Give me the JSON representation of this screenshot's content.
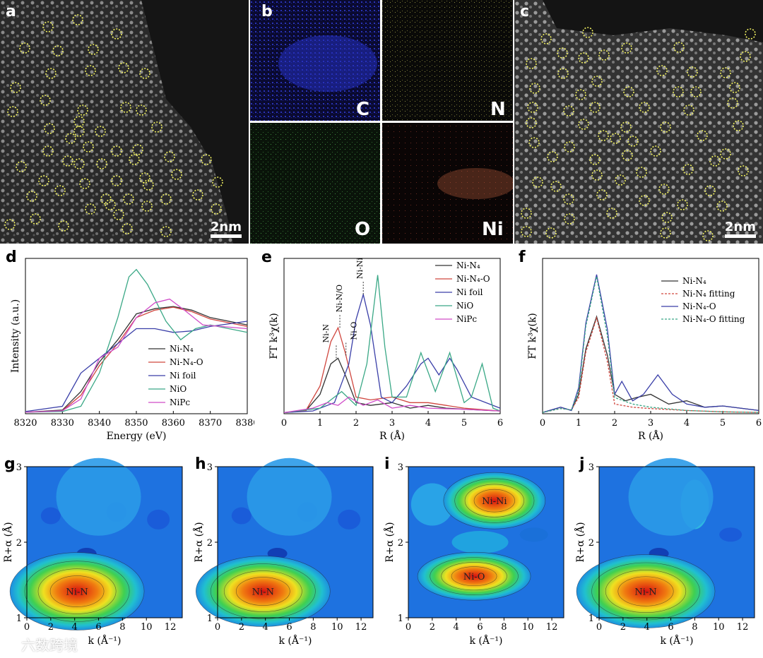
{
  "panels": {
    "a": {
      "label": "a",
      "scalebar": "2nm"
    },
    "b": {
      "label": "b",
      "maps": [
        "C",
        "N",
        "O",
        "Ni"
      ]
    },
    "c": {
      "label": "c",
      "scalebar": "2nm"
    },
    "d": {
      "label": "d",
      "xlabel": "Energy (eV)",
      "ylabel": "Intensity (a.u.)",
      "xticks": [
        "8320",
        "8330",
        "8340",
        "8350",
        "8360",
        "8370",
        "8380"
      ],
      "legend": [
        "Ni-N₄",
        "Ni-N₄-O",
        "Ni foil",
        "NiO",
        "NiPc"
      ]
    },
    "e": {
      "label": "e",
      "xlabel": "R (Å)",
      "ylabel": "FT k³χ(k)",
      "xticks": [
        "0",
        "1",
        "2",
        "3",
        "4",
        "5",
        "6"
      ],
      "legend": [
        "Ni-N₄",
        "Ni-N₄-O",
        "Ni foil",
        "NiO",
        "NiPc"
      ],
      "annotations": [
        "Ni-N",
        "Ni-N/O",
        "Ni-O",
        "Ni-Ni"
      ]
    },
    "f": {
      "label": "f",
      "xlabel": "R (Å)",
      "ylabel": "FT k³χ(k)",
      "xticks": [
        "0",
        "1",
        "2",
        "3",
        "4",
        "5",
        "6"
      ],
      "legend": [
        "Ni-N₄",
        "Ni-N₄ fitting",
        "Ni-N₄-O",
        "Ni-N₄-O fitting"
      ]
    },
    "g": {
      "label": "g",
      "peak": "Ni-N"
    },
    "h": {
      "label": "h",
      "peak": "Ni-N"
    },
    "i": {
      "label": "i",
      "peaks": [
        "Ni-Ni",
        "Ni-O"
      ]
    },
    "j": {
      "label": "j",
      "peak": "Ni-N"
    },
    "wt": {
      "xlabel": "k (Å⁻¹)",
      "ylabel": "R+α (Å)",
      "xticks": [
        "0",
        "2",
        "4",
        "6",
        "8",
        "10",
        "12"
      ],
      "yticks": [
        "1",
        "2",
        "3"
      ]
    }
  },
  "colors": {
    "ni_n4": "#333333",
    "ni_n4o": "#d0473f",
    "ni_foil": "#3a3fa8",
    "nio": "#3aa886",
    "nipc": "#d04cc8",
    "marker": "#f0f060"
  },
  "watermark": "六数跨境",
  "chart_data": [
    {
      "type": "line",
      "id": "d",
      "title": "",
      "xlabel": "Energy (eV)",
      "ylabel": "Intensity (a.u.)",
      "xlim": [
        8320,
        8380
      ],
      "series": [
        {
          "name": "Ni-N₄",
          "x": [
            8320,
            8330,
            8335,
            8340,
            8345,
            8350,
            8355,
            8360,
            8365,
            8370,
            8380
          ],
          "y": [
            0.02,
            0.05,
            0.3,
            0.7,
            1.0,
            1.35,
            1.42,
            1.45,
            1.4,
            1.3,
            1.2
          ]
        },
        {
          "name": "Ni-N₄-O",
          "x": [
            8320,
            8330,
            8335,
            8340,
            8345,
            8350,
            8355,
            8360,
            8365,
            8370,
            8380
          ],
          "y": [
            0.02,
            0.04,
            0.25,
            0.65,
            0.95,
            1.3,
            1.4,
            1.44,
            1.38,
            1.28,
            1.18
          ]
        },
        {
          "name": "Ni foil",
          "x": [
            8320,
            8330,
            8335,
            8340,
            8345,
            8350,
            8355,
            8360,
            8365,
            8370,
            8380
          ],
          "y": [
            0.03,
            0.1,
            0.55,
            0.75,
            0.95,
            1.15,
            1.15,
            1.1,
            1.12,
            1.18,
            1.25
          ]
        },
        {
          "name": "NiO",
          "x": [
            8320,
            8330,
            8335,
            8340,
            8345,
            8348,
            8350,
            8353,
            8358,
            8362,
            8366,
            8370,
            8380
          ],
          "y": [
            0.02,
            0.03,
            0.1,
            0.55,
            1.3,
            1.85,
            1.95,
            1.75,
            1.25,
            1.0,
            1.15,
            1.2,
            1.1
          ]
        },
        {
          "name": "NiPc",
          "x": [
            8320,
            8330,
            8335,
            8340,
            8345,
            8350,
            8355,
            8359,
            8363,
            8368,
            8380
          ],
          "y": [
            0.02,
            0.04,
            0.2,
            0.75,
            0.9,
            1.3,
            1.5,
            1.55,
            1.4,
            1.2,
            1.15
          ]
        }
      ]
    },
    {
      "type": "line",
      "id": "e",
      "title": "",
      "xlabel": "R (Å)",
      "ylabel": "FT k³χ(k)",
      "xlim": [
        0,
        6
      ],
      "series": [
        {
          "name": "Ni-N₄",
          "x": [
            0,
            0.6,
            1.0,
            1.3,
            1.5,
            1.7,
            2.0,
            2.4,
            3.0,
            3.5,
            4.0,
            4.5,
            5.0,
            6.0
          ],
          "y": [
            0.02,
            0.05,
            0.35,
            0.9,
            1.0,
            0.7,
            0.2,
            0.15,
            0.2,
            0.1,
            0.15,
            0.1,
            0.08,
            0.05
          ]
        },
        {
          "name": "Ni-N₄-O",
          "x": [
            0,
            0.6,
            1.0,
            1.3,
            1.5,
            1.7,
            2.0,
            2.4,
            3.0,
            3.5,
            4.0,
            4.5,
            5.0,
            6.0
          ],
          "y": [
            0.02,
            0.05,
            0.5,
            1.3,
            1.55,
            1.1,
            0.3,
            0.25,
            0.3,
            0.2,
            0.2,
            0.15,
            0.1,
            0.05
          ]
        },
        {
          "name": "Ni foil",
          "x": [
            0,
            0.8,
            1.4,
            1.8,
            2.0,
            2.2,
            2.4,
            2.7,
            3.0,
            3.4,
            3.8,
            4.0,
            4.3,
            4.6,
            4.8,
            5.2,
            6.0
          ],
          "y": [
            0.02,
            0.05,
            0.2,
            0.9,
            1.7,
            2.15,
            1.6,
            0.3,
            0.2,
            0.5,
            0.9,
            1.0,
            0.7,
            1.0,
            0.8,
            0.3,
            0.1
          ]
        },
        {
          "name": "NiO",
          "x": [
            0,
            1.0,
            1.6,
            2.0,
            2.3,
            2.6,
            2.8,
            3.0,
            3.4,
            3.8,
            4.2,
            4.6,
            5.0,
            5.2,
            5.5,
            5.8,
            6.0
          ],
          "y": [
            0.02,
            0.1,
            0.4,
            0.15,
            0.9,
            2.5,
            1.2,
            0.3,
            0.3,
            1.1,
            0.4,
            1.1,
            0.2,
            0.3,
            0.9,
            0.1,
            0.05
          ]
        },
        {
          "name": "NiPc",
          "x": [
            0,
            0.8,
            1.2,
            1.5,
            1.8,
            2.2,
            2.6,
            3.0,
            3.5,
            4.0,
            5.0,
            6.0
          ],
          "y": [
            0.02,
            0.1,
            0.2,
            0.15,
            0.3,
            0.15,
            0.25,
            0.1,
            0.15,
            0.1,
            0.08,
            0.05
          ]
        }
      ]
    },
    {
      "type": "line",
      "id": "f",
      "title": "",
      "xlabel": "R (Å)",
      "ylabel": "FT k³χ(k)",
      "xlim": [
        0,
        6
      ],
      "series": [
        {
          "name": "Ni-N₄",
          "x": [
            0,
            0.5,
            0.8,
            1.0,
            1.2,
            1.5,
            1.8,
            2.0,
            2.3,
            2.6,
            3.0,
            3.5,
            4.0,
            4.5,
            5.0,
            6.0
          ],
          "y": [
            0.02,
            0.1,
            0.05,
            0.3,
            1.0,
            1.5,
            0.9,
            0.3,
            0.2,
            0.25,
            0.3,
            0.15,
            0.2,
            0.1,
            0.12,
            0.05
          ]
        },
        {
          "name": "Ni-N₄ fitting",
          "x": [
            0,
            0.5,
            0.8,
            1.0,
            1.2,
            1.5,
            1.8,
            2.0,
            2.5,
            3.0,
            4.0,
            5.0,
            6.0
          ],
          "y": [
            0.02,
            0.08,
            0.06,
            0.25,
            0.95,
            1.48,
            0.8,
            0.15,
            0.1,
            0.08,
            0.05,
            0.03,
            0.02
          ]
        },
        {
          "name": "Ni-N₄-O",
          "x": [
            0,
            0.5,
            0.8,
            1.0,
            1.2,
            1.5,
            1.8,
            2.0,
            2.2,
            2.5,
            2.8,
            3.2,
            3.6,
            4.0,
            4.5,
            5.0,
            6.0
          ],
          "y": [
            0.02,
            0.1,
            0.05,
            0.4,
            1.4,
            2.15,
            1.3,
            0.3,
            0.5,
            0.2,
            0.3,
            0.6,
            0.3,
            0.15,
            0.1,
            0.12,
            0.05
          ]
        },
        {
          "name": "Ni-N₄-O fitting",
          "x": [
            0,
            0.5,
            0.8,
            1.0,
            1.2,
            1.5,
            1.8,
            2.0,
            2.5,
            3.0,
            4.0,
            5.0,
            6.0
          ],
          "y": [
            0.02,
            0.08,
            0.06,
            0.35,
            1.35,
            2.12,
            1.2,
            0.25,
            0.15,
            0.1,
            0.05,
            0.03,
            0.02
          ]
        }
      ]
    }
  ]
}
